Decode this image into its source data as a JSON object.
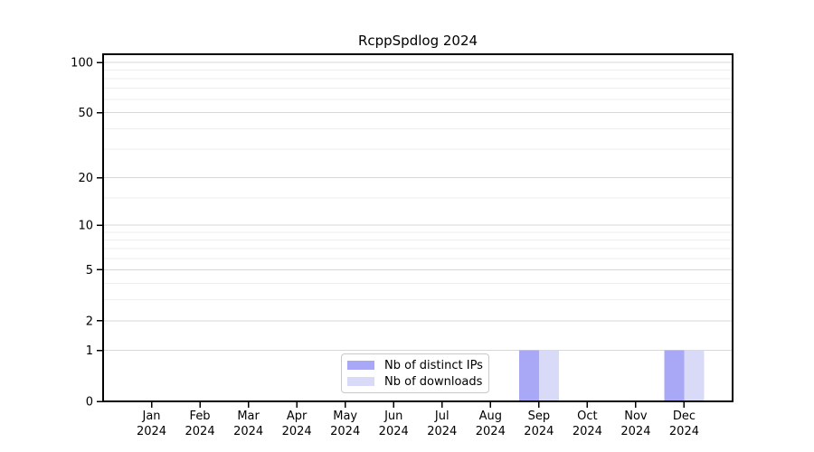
{
  "figure": {
    "background": "#ffffff"
  },
  "chart_data": {
    "type": "bar",
    "title": "RcppSpdlog 2024",
    "x_categories": [
      "Jan",
      "Feb",
      "Mar",
      "Apr",
      "May",
      "Jun",
      "Jul",
      "Aug",
      "Sep",
      "Oct",
      "Nov",
      "Dec"
    ],
    "x_year_suffix": "2024",
    "series": [
      {
        "name": "Nb of distinct IPs",
        "color": "#a9a8f6",
        "values": [
          0,
          0,
          0,
          0,
          0,
          0,
          0,
          0,
          1,
          0,
          0,
          1
        ]
      },
      {
        "name": "Nb of downloads",
        "color": "#d9d9f8",
        "values": [
          0,
          0,
          0,
          0,
          0,
          0,
          0,
          0,
          1,
          0,
          0,
          1
        ]
      }
    ],
    "y_axis": {
      "scale": "log1p",
      "ticks": [
        0,
        1,
        2,
        5,
        10,
        20,
        50,
        100
      ],
      "minor_gridlines": [
        3,
        4,
        6,
        7,
        8,
        9,
        15,
        30,
        40,
        60,
        70,
        80,
        90
      ],
      "range": [
        0,
        112
      ]
    },
    "grid": {
      "major_color": "#d7d7d7",
      "minor_color": "#eeeeee",
      "orientation": "horizontal"
    },
    "axis_color": "#000000",
    "legend": {
      "position": "inside-bottom-center"
    }
  }
}
